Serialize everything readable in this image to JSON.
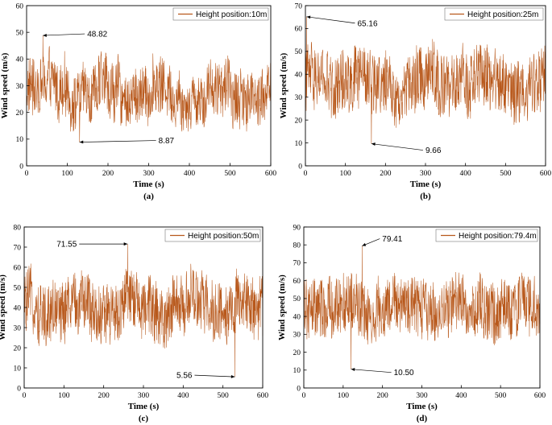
{
  "chart_data": [
    {
      "type": "line",
      "panel_label": "(a)",
      "title": "",
      "xlabel": "Time (s)",
      "ylabel": "Wind speed (m/s)",
      "xlim": [
        0,
        600
      ],
      "ylim": [
        0,
        60
      ],
      "xticks": [
        0,
        100,
        200,
        300,
        400,
        500,
        600
      ],
      "yticks": [
        0,
        10,
        20,
        30,
        40,
        50,
        60
      ],
      "legend": "Height position:10m",
      "legend_position": "top-right",
      "color": "#b8581b",
      "series": [
        {
          "name": "Height position:10m",
          "mean": 28,
          "max": {
            "x": 40,
            "value": 48.82
          },
          "min": {
            "x": 130,
            "value": 8.87
          }
        }
      ],
      "annotations": [
        {
          "text": "48.82",
          "x": 40,
          "y": 48.82
        },
        {
          "text": "8.87",
          "x": 130,
          "y": 8.87
        }
      ]
    },
    {
      "type": "line",
      "panel_label": "(b)",
      "title": "",
      "xlabel": "Time (s)",
      "ylabel": "Wind speed (m/s)",
      "xlim": [
        0,
        600
      ],
      "ylim": [
        0,
        70
      ],
      "xticks": [
        0,
        100,
        200,
        300,
        400,
        500,
        600
      ],
      "yticks": [
        0,
        10,
        20,
        30,
        40,
        50,
        60,
        70
      ],
      "legend": "Height position:25m",
      "legend_position": "top-right",
      "color": "#b8581b",
      "series": [
        {
          "name": "Height position:25m",
          "mean": 36,
          "max": {
            "x": 3,
            "value": 65.16
          },
          "min": {
            "x": 165,
            "value": 9.66
          }
        }
      ],
      "annotations": [
        {
          "text": "65.16",
          "x": 3,
          "y": 65.16
        },
        {
          "text": "9.66",
          "x": 165,
          "y": 9.66
        }
      ]
    },
    {
      "type": "line",
      "panel_label": "(c)",
      "title": "",
      "xlabel": "Time (s)",
      "ylabel": "Wind speed (m/s)",
      "xlim": [
        0,
        600
      ],
      "ylim": [
        0,
        80
      ],
      "xticks": [
        0,
        100,
        200,
        300,
        400,
        500,
        600
      ],
      "yticks": [
        0,
        10,
        20,
        30,
        40,
        50,
        60,
        70,
        80
      ],
      "legend": "Height position:50m",
      "legend_position": "top-right",
      "color": "#b8581b",
      "series": [
        {
          "name": "Height position:50m",
          "mean": 40,
          "max": {
            "x": 260,
            "value": 71.55
          },
          "min": {
            "x": 530,
            "value": 5.56
          }
        }
      ],
      "annotations": [
        {
          "text": "71.55",
          "x": 260,
          "y": 71.55
        },
        {
          "text": "5.56",
          "x": 530,
          "y": 5.56
        }
      ]
    },
    {
      "type": "line",
      "panel_label": "(d)",
      "title": "",
      "xlabel": "Time (s)",
      "ylabel": "Wind speed (m/s)",
      "xlim": [
        0,
        600
      ],
      "ylim": [
        0,
        90
      ],
      "xticks": [
        0,
        100,
        200,
        300,
        400,
        500,
        600
      ],
      "yticks": [
        0,
        10,
        20,
        30,
        40,
        50,
        60,
        70,
        80,
        90
      ],
      "legend": "Height position:79.4m",
      "legend_position": "top-right",
      "color": "#b8581b",
      "series": [
        {
          "name": "Height position:79.4m",
          "mean": 44,
          "max": {
            "x": 148,
            "value": 79.41
          },
          "min": {
            "x": 120,
            "value": 10.5
          }
        }
      ],
      "annotations": [
        {
          "text": "79.41",
          "x": 148,
          "y": 79.41
        },
        {
          "text": "10.50",
          "x": 120,
          "y": 10.5
        }
      ]
    }
  ]
}
